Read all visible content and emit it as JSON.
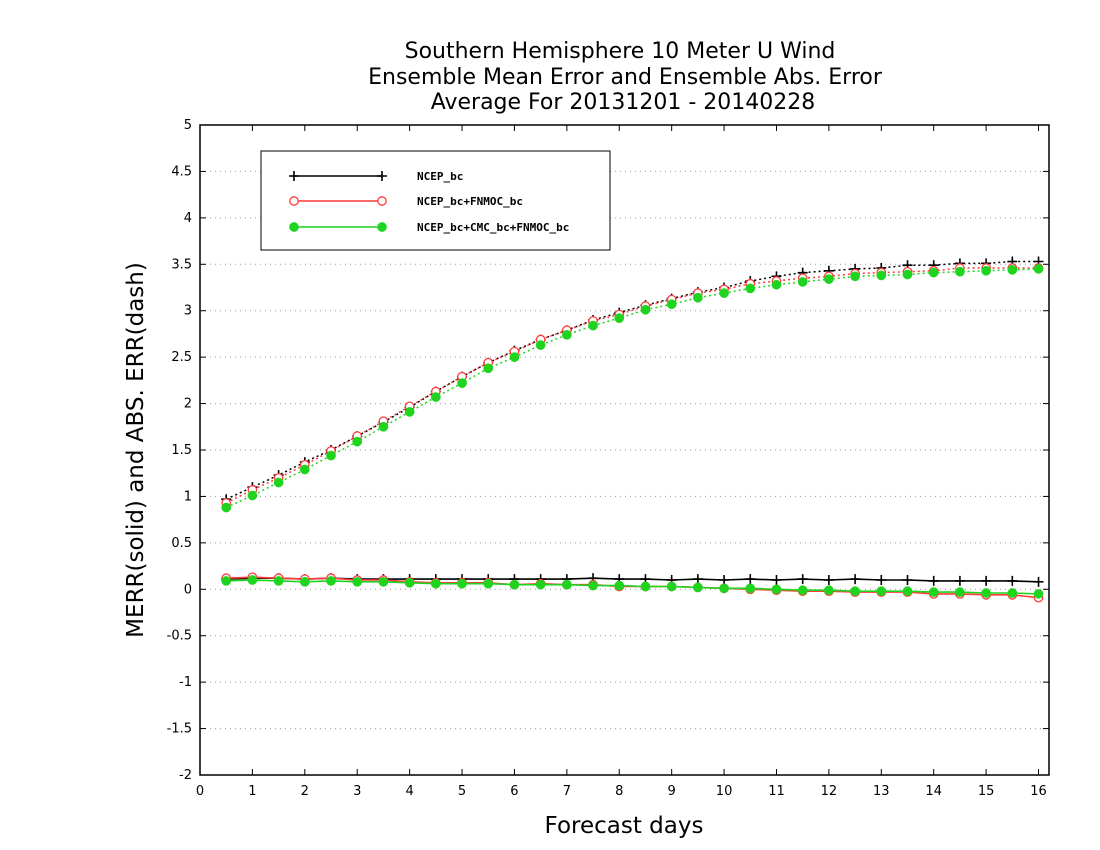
{
  "chart_data": {
    "type": "line",
    "title": [
      "Southern Hemisphere 10 Meter U Wind",
      "Ensemble Mean Error and Ensemble Abs. Error",
      "Average For 20131201 - 20140228"
    ],
    "xlabel": "Forecast days",
    "ylabel": "MERR(solid) and ABS. ERR(dash)",
    "xlim": [
      0,
      16.2
    ],
    "ylim": [
      -2,
      5
    ],
    "xticks": [
      "0",
      "1",
      "2",
      "3",
      "4",
      "5",
      "6",
      "7",
      "8",
      "9",
      "10",
      "11",
      "12",
      "13",
      "14",
      "15",
      "16"
    ],
    "yticks": [
      "-2",
      "-1.5",
      "-1",
      "-0.5",
      "0",
      "0.5",
      "1",
      "1.5",
      "2",
      "2.5",
      "3",
      "3.5",
      "4",
      "4.5",
      "5"
    ],
    "grid": "horizontal-dotted",
    "legend_position": "top-left",
    "x": [
      0.5,
      1,
      1.5,
      2,
      2.5,
      3,
      3.5,
      4,
      4.5,
      5,
      5.5,
      6,
      6.5,
      7,
      7.5,
      8,
      8.5,
      9,
      9.5,
      10,
      10.5,
      11,
      11.5,
      12,
      12.5,
      13,
      13.5,
      14,
      14.5,
      15,
      15.5,
      16
    ],
    "series": [
      {
        "name": "NCEP_bc",
        "color": "#000000",
        "marker": "plus",
        "merr": [
          0.11,
          0.12,
          0.12,
          0.11,
          0.12,
          0.11,
          0.11,
          0.11,
          0.11,
          0.11,
          0.11,
          0.11,
          0.11,
          0.11,
          0.12,
          0.11,
          0.11,
          0.1,
          0.11,
          0.1,
          0.11,
          0.1,
          0.11,
          0.1,
          0.11,
          0.1,
          0.1,
          0.09,
          0.09,
          0.09,
          0.09,
          0.08
        ],
        "abserr": [
          0.97,
          1.1,
          1.23,
          1.37,
          1.5,
          1.65,
          1.8,
          1.96,
          2.13,
          2.29,
          2.44,
          2.57,
          2.69,
          2.79,
          2.9,
          2.98,
          3.06,
          3.13,
          3.2,
          3.25,
          3.32,
          3.37,
          3.41,
          3.43,
          3.45,
          3.46,
          3.49,
          3.49,
          3.51,
          3.51,
          3.53,
          3.53
        ]
      },
      {
        "name": "NCEP_bc+FNMOC_bc",
        "color": "#ff3b3b",
        "marker": "open-circle",
        "merr": [
          0.12,
          0.13,
          0.12,
          0.11,
          0.12,
          0.1,
          0.1,
          0.08,
          0.07,
          0.07,
          0.07,
          0.05,
          0.06,
          0.05,
          0.05,
          0.03,
          0.03,
          0.03,
          0.02,
          0.01,
          0.0,
          -0.01,
          -0.02,
          -0.02,
          -0.03,
          -0.03,
          -0.03,
          -0.05,
          -0.05,
          -0.06,
          -0.06,
          -0.09
        ],
        "abserr": [
          0.93,
          1.07,
          1.2,
          1.34,
          1.49,
          1.65,
          1.81,
          1.97,
          2.13,
          2.29,
          2.44,
          2.56,
          2.69,
          2.79,
          2.89,
          2.96,
          3.05,
          3.12,
          3.19,
          3.23,
          3.29,
          3.32,
          3.35,
          3.37,
          3.4,
          3.41,
          3.42,
          3.43,
          3.46,
          3.46,
          3.46,
          3.46
        ]
      },
      {
        "name": "NCEP_bc+CMC_bc+FNMOC_bc",
        "color": "#1fd41f",
        "marker": "filled-circle",
        "merr": [
          0.09,
          0.1,
          0.09,
          0.08,
          0.09,
          0.08,
          0.08,
          0.07,
          0.06,
          0.06,
          0.06,
          0.05,
          0.05,
          0.05,
          0.04,
          0.04,
          0.03,
          0.03,
          0.02,
          0.01,
          0.01,
          0.0,
          -0.01,
          -0.01,
          -0.02,
          -0.02,
          -0.02,
          -0.03,
          -0.03,
          -0.04,
          -0.04,
          -0.05
        ],
        "abserr": [
          0.88,
          1.01,
          1.15,
          1.29,
          1.44,
          1.59,
          1.75,
          1.91,
          2.07,
          2.22,
          2.38,
          2.5,
          2.63,
          2.74,
          2.84,
          2.92,
          3.01,
          3.07,
          3.14,
          3.19,
          3.24,
          3.28,
          3.31,
          3.34,
          3.37,
          3.38,
          3.39,
          3.41,
          3.42,
          3.43,
          3.44,
          3.45
        ]
      }
    ]
  }
}
